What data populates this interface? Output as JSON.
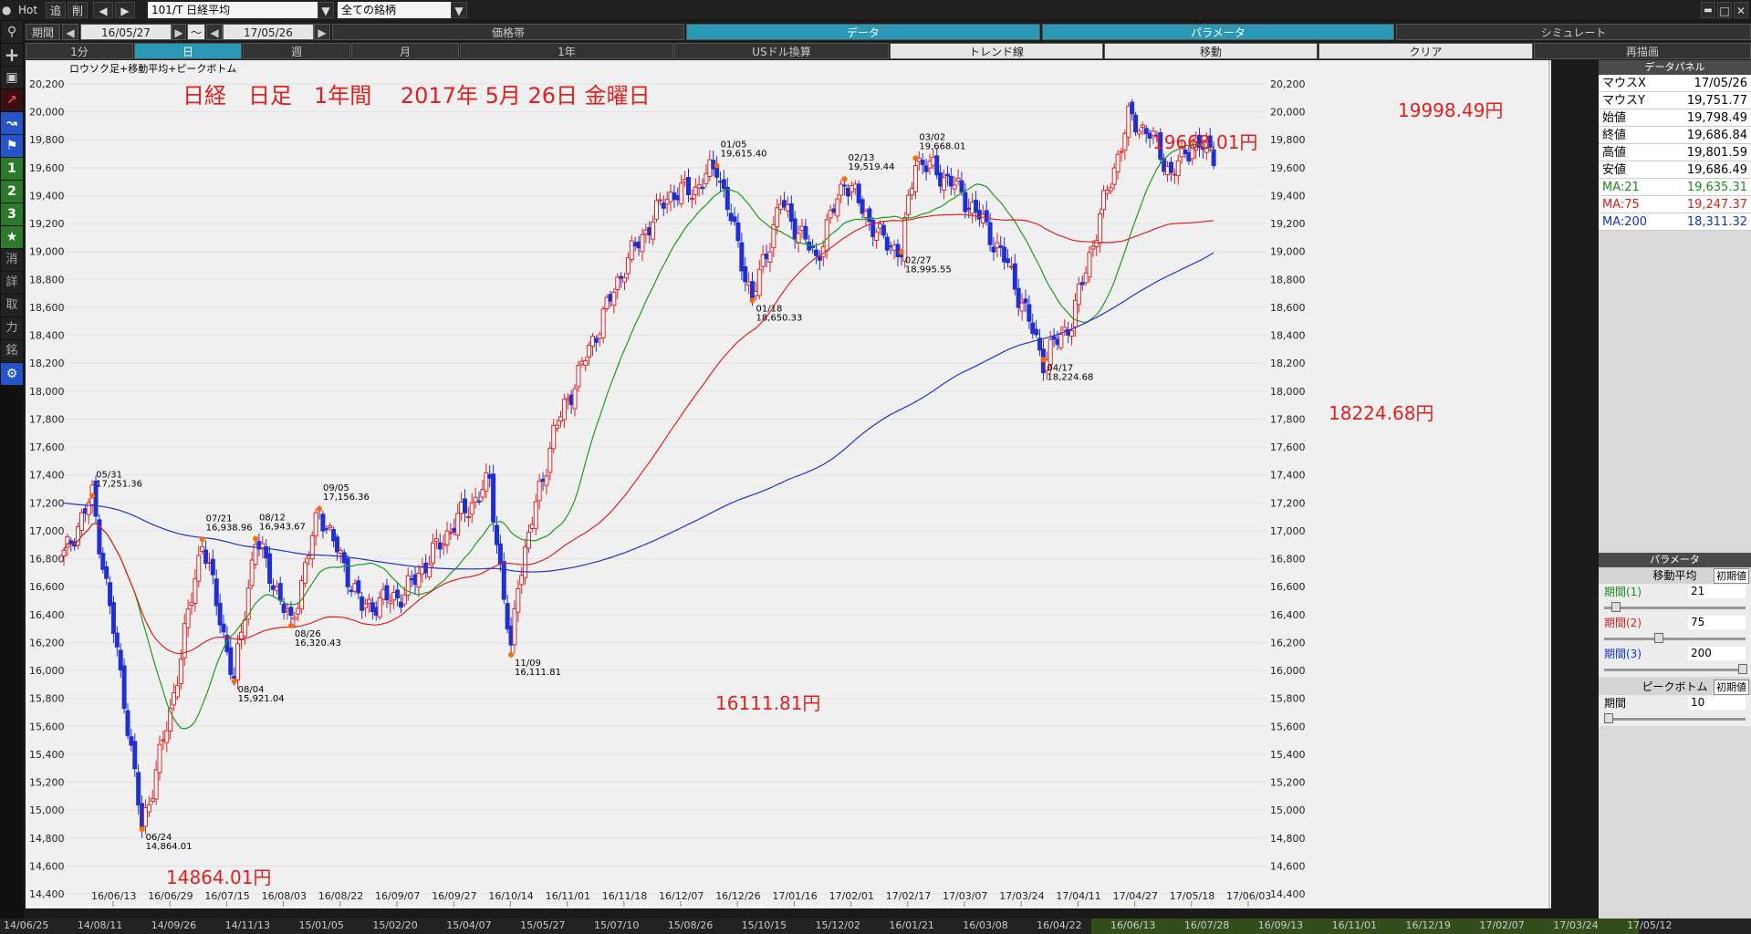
{
  "toolbar": {
    "hot": "Hot",
    "tsui": "追",
    "sakujo": "削",
    "symbol": "101/T 日経平均",
    "filter": "全ての銘柄",
    "period_label": "期間",
    "date_from": "16/05/27",
    "tilde": "～",
    "date_to": "17/05/26"
  },
  "top_tabs": [
    "価格帯",
    "データ",
    "パラメータ",
    "シミュレート"
  ],
  "row3_tabs": [
    "1分",
    "日",
    "週",
    "月",
    "1年",
    "USドル換算",
    "トレンド線",
    "移動",
    "クリア",
    "再描画"
  ],
  "left_buttons": [
    "1",
    "2",
    "3",
    "★",
    "消",
    "詳",
    "取",
    "力",
    "銘"
  ],
  "chart_data": {
    "type": "candlestick",
    "subtitle": "ロウソク足+移動平均+ピークボトム",
    "title": "日経　日足　1年間　 2017年 5月 26日 金曜日",
    "ylim": [
      14400,
      20200
    ],
    "y_ticks": [
      14400,
      14600,
      14800,
      15000,
      15200,
      15400,
      15600,
      15800,
      16000,
      16200,
      16400,
      16600,
      16800,
      17000,
      17200,
      17400,
      17600,
      17800,
      18000,
      18200,
      18400,
      18600,
      18800,
      19000,
      19200,
      19400,
      19600,
      19800,
      20000,
      20200
    ],
    "x_tick_labels": [
      "16/06/13",
      "16/06/29",
      "16/07/15",
      "16/08/03",
      "16/08/22",
      "16/09/07",
      "16/09/27",
      "16/10/14",
      "16/11/01",
      "16/11/18",
      "16/12/07",
      "16/12/26",
      "17/01/16",
      "17/02/01",
      "17/02/17",
      "17/03/07",
      "17/03/24",
      "17/04/11",
      "17/04/27",
      "17/05/18",
      "17/06/03"
    ],
    "peaks": [
      {
        "date": "05/31",
        "value": "17,251.36",
        "type": "peak"
      },
      {
        "date": "06/24",
        "value": "14,864.01",
        "type": "bottom"
      },
      {
        "date": "07/21",
        "value": "16,938.96",
        "type": "peak"
      },
      {
        "date": "08/04",
        "value": "15,921.04",
        "type": "bottom"
      },
      {
        "date": "08/12",
        "value": "16,943.67",
        "type": "peak"
      },
      {
        "date": "08/26",
        "value": "16,320.43",
        "type": "bottom"
      },
      {
        "date": "09/05",
        "value": "17,156.36",
        "type": "peak"
      },
      {
        "date": "11/09",
        "value": "16,111.81",
        "type": "bottom"
      },
      {
        "date": "01/05",
        "value": "19,615.40",
        "type": "peak"
      },
      {
        "date": "01/18",
        "value": "18,650.33",
        "type": "bottom"
      },
      {
        "date": "02/13",
        "value": "19,519.44",
        "type": "peak"
      },
      {
        "date": "02/27",
        "value": "18,995.55",
        "type": "bottom"
      },
      {
        "date": "03/02",
        "value": "19,668.01",
        "type": "peak"
      },
      {
        "date": "04/17",
        "value": "18,224.68",
        "type": "bottom"
      }
    ],
    "big_annotations": [
      "19998.49円",
      "19668.01円",
      "18224.68円",
      "16111.81円",
      "14864.01円"
    ],
    "ma_colors": {
      "ma21": "#1f9a1f",
      "ma75": "#dd2222",
      "ma200": "#2233cc"
    },
    "up_color": "#e02020",
    "down_color": "#2030d0"
  },
  "data_panel": {
    "title": "データパネル",
    "rows": [
      {
        "label": "マウスX",
        "value": "17/05/26"
      },
      {
        "label": "マウスY",
        "value": "19,751.77"
      },
      {
        "label": "始値",
        "value": "19,798.49"
      },
      {
        "label": "終値",
        "value": "19,686.84"
      },
      {
        "label": "高値",
        "value": "19,801.59"
      },
      {
        "label": "安値",
        "value": "19,686.49"
      }
    ],
    "ma_rows": [
      {
        "label": "MA:21",
        "value": "19,635.31",
        "color": "#1a8a1a"
      },
      {
        "label": "MA:75",
        "value": "19,247.37",
        "color": "#d02020"
      },
      {
        "label": "MA:200",
        "value": "18,311.32",
        "color": "#1030d0"
      }
    ]
  },
  "param_panel": {
    "title": "パラメータ",
    "ma_header": "移動平均",
    "init_label": "初期値",
    "p1_label": "期間(1)",
    "p1_value": "21",
    "p2_label": "期間(2)",
    "p2_value": "75",
    "p3_label": "期間(3)",
    "p3_value": "200",
    "pb_header": "ピークボトム",
    "pb_label": "期間",
    "pb_value": "10"
  },
  "bottom_dates": [
    "14/06/25",
    "14/08/11",
    "14/09/26",
    "14/11/13",
    "15/01/05",
    "15/02/20",
    "15/04/07",
    "15/05/27",
    "15/07/10",
    "15/08/26",
    "15/10/15",
    "15/12/02",
    "16/01/21",
    "16/03/08",
    "16/04/22",
    "16/06/13",
    "16/07/28",
    "16/09/13",
    "16/11/01",
    "16/12/19",
    "17/02/07",
    "17/03/24",
    "17/05/12"
  ]
}
